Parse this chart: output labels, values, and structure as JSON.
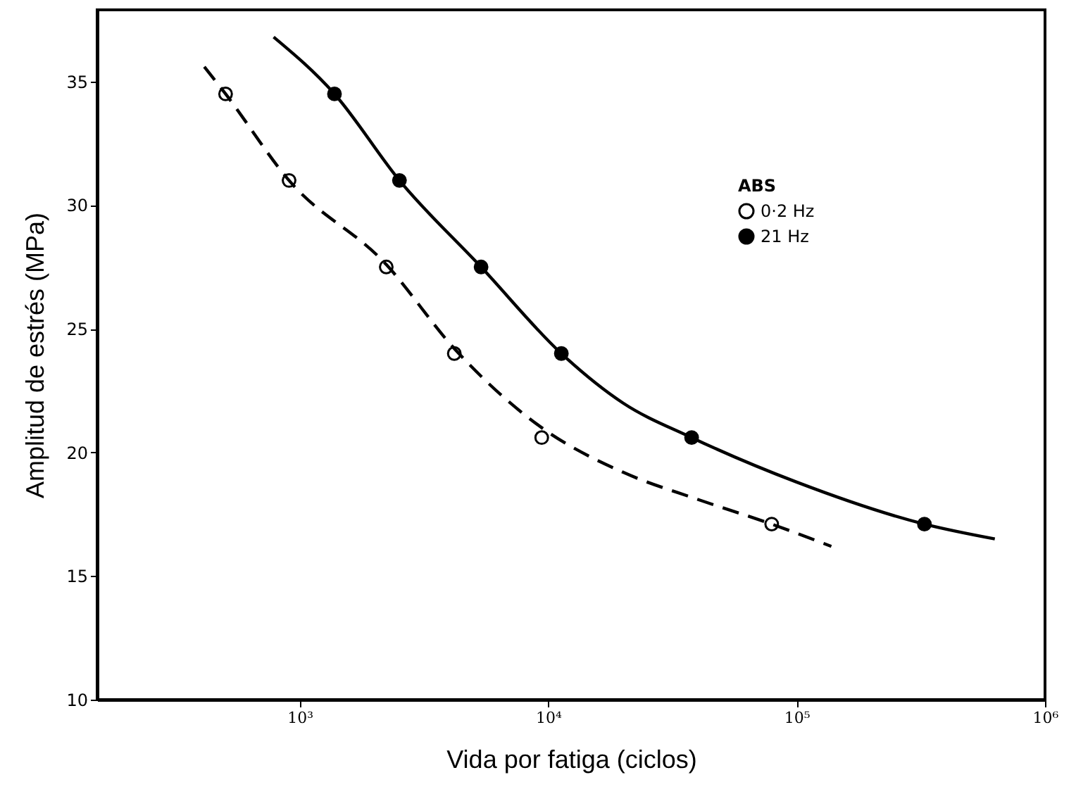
{
  "chart_data": {
    "type": "scatter",
    "xlabel": "Vida por fatiga (ciclos)",
    "ylabel": "Amplitud de estrés (MPa)",
    "legend_title": "ABS",
    "log": "x",
    "xlim": [
      153,
      1000000
    ],
    "ylim": [
      10,
      37.9
    ],
    "xticks": [
      {
        "value": 1000,
        "label": "10³"
      },
      {
        "value": 10000,
        "label": "10⁴"
      },
      {
        "value": 100000,
        "label": "10⁵"
      },
      {
        "value": 1000000,
        "label": "10⁶"
      }
    ],
    "yticks": [
      10,
      15,
      20,
      25,
      30,
      35
    ],
    "grid": false,
    "legend": "top right",
    "series": [
      {
        "name": "0·2 Hz",
        "color": "#ffffff",
        "marker": "circle",
        "x": [
          503,
          906,
          2230,
          4190,
          9420,
          79400
        ],
        "values": [
          34.5,
          31.0,
          27.5,
          24.0,
          20.6,
          17.1
        ]
      },
      {
        "name": "21 Hz",
        "color": "#000000",
        "marker": "circle",
        "x": [
          1380,
          2520,
          5370,
          11300,
          37800,
          327000
        ],
        "values": [
          34.5,
          31.0,
          27.5,
          24.0,
          20.6,
          17.1
        ]
      },
      {
        "type": "line",
        "color": "#000000",
        "line_style": "dashed",
        "marker": "none",
        "x": [
          413,
          503,
          906,
          2230,
          4190,
          9420,
          20000,
          40000,
          79400,
          138000
        ],
        "values": [
          35.6,
          34.5,
          31.0,
          27.6,
          24.2,
          21.0,
          19.2,
          18.1,
          17.1,
          16.2
        ]
      },
      {
        "type": "line",
        "color": "#000000",
        "line_style": "solid",
        "marker": "none",
        "x": [
          785,
          1380,
          2520,
          5370,
          11300,
          20000,
          37800,
          100000,
          327000,
          628000
        ],
        "values": [
          36.8,
          34.5,
          31.0,
          27.5,
          24.0,
          22.0,
          20.6,
          18.8,
          17.1,
          16.5
        ]
      }
    ]
  }
}
